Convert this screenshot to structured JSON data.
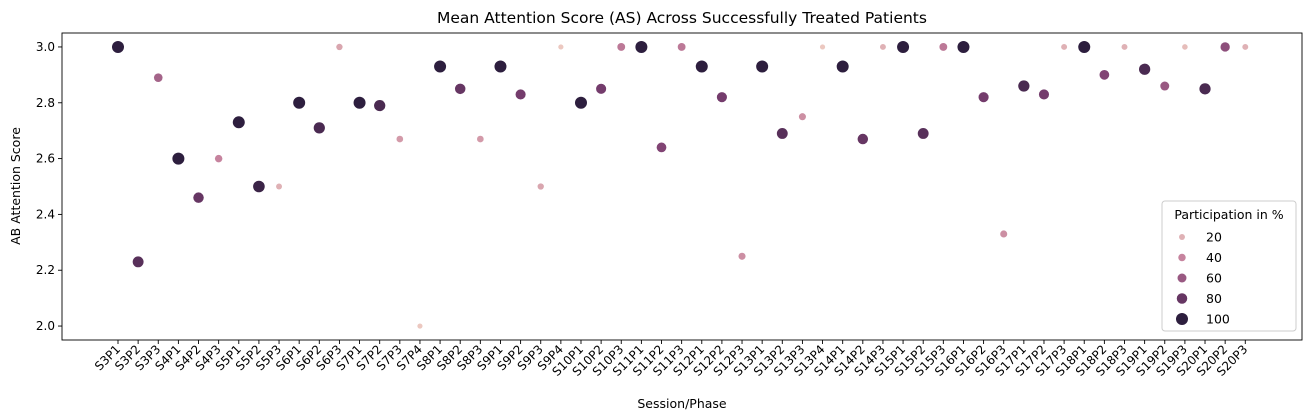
{
  "chart_data": {
    "type": "scatter",
    "title": "Mean Attention Score (AS) Across Successfully Treated Patients",
    "xlabel": "Session/Phase",
    "ylabel": "AB Attention Score",
    "ylim": [
      1.95,
      3.05
    ],
    "yticks": [
      2.0,
      2.2,
      2.4,
      2.6,
      2.8,
      3.0
    ],
    "ytick_labels": [
      "2.0",
      "2.2",
      "2.4",
      "2.6",
      "2.8",
      "3.0"
    ],
    "grid": false,
    "legend": {
      "title": "Participation in %",
      "placement": "lower-right",
      "entries": [
        {
          "label": "20",
          "value": 20
        },
        {
          "label": "40",
          "value": 40
        },
        {
          "label": "60",
          "value": 60
        },
        {
          "label": "80",
          "value": 80
        },
        {
          "label": "100",
          "value": 100
        }
      ]
    },
    "categories": [
      "S3P1",
      "S3P2",
      "S3P3",
      "S4P1",
      "S4P2",
      "S4P3",
      "S5P1",
      "S5P2",
      "S5P3",
      "S6P1",
      "S6P2",
      "S6P3",
      "S7P1",
      "S7P2",
      "S7P3",
      "S7P4",
      "S8P1",
      "S8P2",
      "S8P3",
      "S9P1",
      "S9P2",
      "S9P3",
      "S9P4",
      "S10P1",
      "S10P2",
      "S10P3",
      "S11P1",
      "S11P2",
      "S11P3",
      "S12P1",
      "S12P2",
      "S12P3",
      "S13P1",
      "S13P2",
      "S13P3",
      "S13P4",
      "S14P1",
      "S14P2",
      "S14P3",
      "S15P1",
      "S15P2",
      "S15P3",
      "S16P1",
      "S16P2",
      "S16P3",
      "S17P1",
      "S17P2",
      "S17P3",
      "S18P1",
      "S18P2",
      "S18P3",
      "S19P1",
      "S19P2",
      "S19P3",
      "S20P1",
      "S20P2",
      "S20P3"
    ],
    "y": [
      3.0,
      2.23,
      2.89,
      2.6,
      2.46,
      2.6,
      2.73,
      2.5,
      2.5,
      2.8,
      2.71,
      3.0,
      2.8,
      2.79,
      2.67,
      2.0,
      2.93,
      2.85,
      2.67,
      2.93,
      2.83,
      2.5,
      3.0,
      2.8,
      2.85,
      3.0,
      3.0,
      2.64,
      3.0,
      2.93,
      2.82,
      2.25,
      2.93,
      2.69,
      2.75,
      3.0,
      2.93,
      2.67,
      3.0,
      3.0,
      2.69,
      3.0,
      3.0,
      2.82,
      2.33,
      2.86,
      2.83,
      3.0,
      3.0,
      2.9,
      3.0,
      2.92,
      2.86,
      3.0,
      2.85,
      3.0,
      3.0
    ],
    "participation": [
      100,
      85,
      55,
      100,
      80,
      40,
      100,
      95,
      20,
      100,
      90,
      25,
      100,
      90,
      30,
      10,
      100,
      80,
      30,
      100,
      75,
      25,
      10,
      100,
      75,
      45,
      100,
      70,
      45,
      100,
      75,
      35,
      100,
      85,
      35,
      10,
      100,
      80,
      20,
      100,
      85,
      45,
      100,
      75,
      35,
      90,
      75,
      20,
      100,
      70,
      20,
      90,
      60,
      15,
      90,
      65,
      20
    ]
  }
}
